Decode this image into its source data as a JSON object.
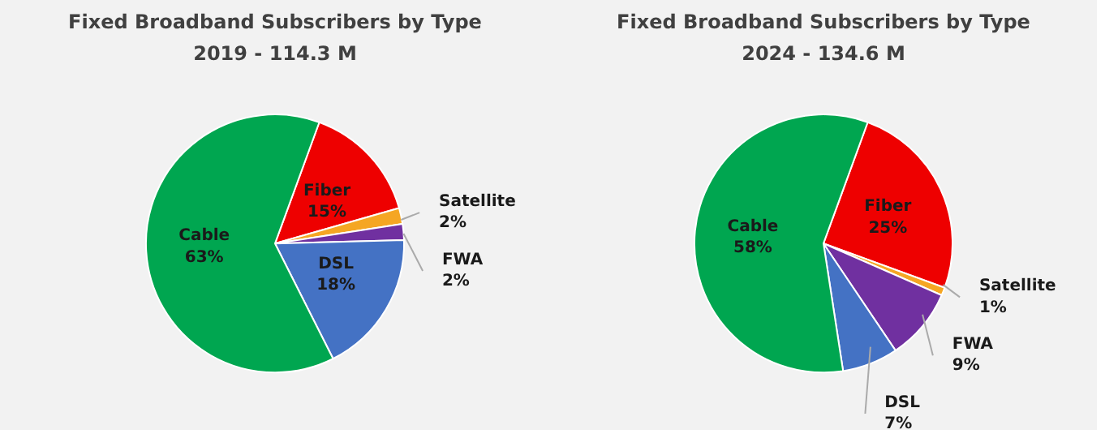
{
  "chart_data": [
    {
      "type": "pie",
      "title": "Fixed Broadband Subscribers by Type",
      "subtitle": "2019 - 114.3 M",
      "categories": [
        "Fiber",
        "Satellite",
        "FWA",
        "DSL",
        "Cable"
      ],
      "values": [
        15,
        2,
        2,
        18,
        63
      ],
      "colors": [
        "#ee0000",
        "#f5a623",
        "#7030a0",
        "#4472c4",
        "#00a650"
      ],
      "value_labels": [
        "15%",
        "2%",
        "2%",
        "18%",
        "63%"
      ]
    },
    {
      "type": "pie",
      "title": "Fixed Broadband Subscribers by Type",
      "subtitle": "2024 - 134.6 M",
      "categories": [
        "Fiber",
        "Satellite",
        "FWA",
        "DSL",
        "Cable"
      ],
      "values": [
        25,
        1,
        9,
        7,
        58
      ],
      "colors": [
        "#ee0000",
        "#f5a623",
        "#7030a0",
        "#4472c4",
        "#00a650"
      ],
      "value_labels": [
        "25%",
        "1%",
        "9%",
        "7%",
        "58%"
      ]
    }
  ]
}
